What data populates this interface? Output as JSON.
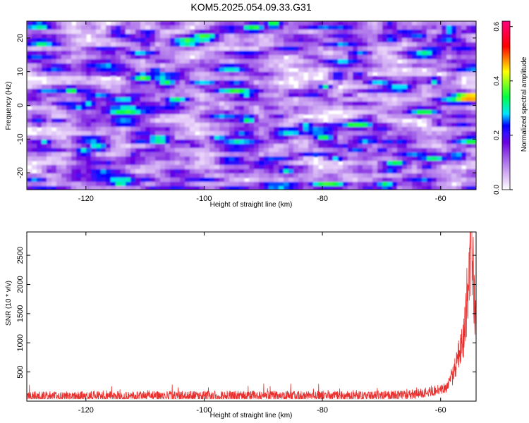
{
  "title": "KOM5.2025.054.09.33.G31",
  "chart_data": [
    {
      "type": "heatmap",
      "xlabel": "Height of straight line (km)",
      "ylabel": "Frequency (Hz)",
      "xlim": [
        -130,
        -54
      ],
      "ylim": [
        -25,
        25
      ],
      "xticks": [
        "-120",
        "-100",
        "-80",
        "-60"
      ],
      "yticks": [
        "20",
        "10",
        "0",
        "-10",
        "-20"
      ],
      "colorbar": {
        "label": "Normalized spectral amplitude",
        "range": [
          0,
          0.62
        ],
        "ticks": [
          "0.0",
          "0.2",
          "0.4",
          "0.6"
        ],
        "colormap": [
          "#ffffff",
          "#e5ccf8",
          "#c59af0",
          "#9a52e6",
          "#6a00e0",
          "#3b10ff",
          "#0000ff",
          "#00e5ff",
          "#00ff40",
          "#ffff00",
          "#ff0000",
          "#ff007f"
        ]
      },
      "background_level": 0.06,
      "hotspot": {
        "x": -55.5,
        "y": 3,
        "value": 0.6
      }
    },
    {
      "type": "line",
      "xlabel": "Height of straight line (km)",
      "ylabel": "SNR (10 * v/v)",
      "xlim": [
        -130,
        -54
      ],
      "ylim": [
        0,
        2900
      ],
      "xticks": [
        "-120",
        "-100",
        "-80",
        "-60"
      ],
      "yticks": [
        "500",
        "1000",
        "1500",
        "2000",
        "2500"
      ],
      "color": "#e8312f",
      "baseline_range": [
        60,
        280
      ],
      "onset_x": -58,
      "x_knots": [
        -130,
        -66,
        -62,
        -59,
        -58,
        -57,
        -56,
        -55.5,
        -55,
        -54.5,
        -54
      ],
      "y_knots": [
        180,
        190,
        240,
        300,
        500,
        900,
        1400,
        2200,
        2800,
        2500,
        1500
      ]
    }
  ]
}
